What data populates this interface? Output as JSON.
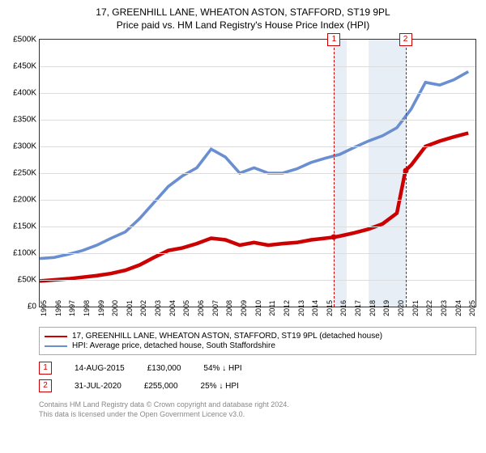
{
  "title_line1": "17, GREENHILL LANE, WHEATON ASTON, STAFFORD, ST19 9PL",
  "title_line2": "Price paid vs. HM Land Registry's House Price Index (HPI)",
  "chart": {
    "type": "line",
    "background_color": "#ffffff",
    "grid_color": "#dddddd",
    "border_color": "#333333",
    "shade_color": "#e8eef6",
    "marker_color": "#cc0000",
    "y": {
      "min": 0,
      "max": 500000,
      "ticks": [
        0,
        50000,
        100000,
        150000,
        200000,
        250000,
        300000,
        350000,
        400000,
        450000,
        500000
      ],
      "labels": [
        "£0",
        "£50K",
        "£100K",
        "£150K",
        "£200K",
        "£250K",
        "£300K",
        "£350K",
        "£400K",
        "£450K",
        "£500K"
      ],
      "label_fontsize": 10
    },
    "x": {
      "min": 1995,
      "max": 2025.5,
      "ticks": [
        1995,
        1996,
        1997,
        1998,
        1999,
        2000,
        2001,
        2002,
        2003,
        2004,
        2005,
        2006,
        2007,
        2008,
        2009,
        2010,
        2011,
        2012,
        2013,
        2014,
        2015,
        2016,
        2017,
        2018,
        2019,
        2020,
        2021,
        2022,
        2023,
        2024,
        2025
      ],
      "label_fontsize": 9
    },
    "series": [
      {
        "name": "price_paid",
        "color": "#cc0000",
        "line_width": 1.5,
        "data": [
          [
            1995,
            48000
          ],
          [
            1996,
            50000
          ],
          [
            1997,
            52000
          ],
          [
            1998,
            55000
          ],
          [
            1999,
            58000
          ],
          [
            2000,
            62000
          ],
          [
            2001,
            68000
          ],
          [
            2002,
            78000
          ],
          [
            2003,
            92000
          ],
          [
            2004,
            105000
          ],
          [
            2005,
            110000
          ],
          [
            2006,
            118000
          ],
          [
            2007,
            128000
          ],
          [
            2008,
            125000
          ],
          [
            2009,
            115000
          ],
          [
            2010,
            120000
          ],
          [
            2011,
            115000
          ],
          [
            2012,
            118000
          ],
          [
            2013,
            120000
          ],
          [
            2014,
            125000
          ],
          [
            2015,
            128000
          ],
          [
            2015.6,
            130000
          ],
          [
            2016,
            132000
          ],
          [
            2017,
            138000
          ],
          [
            2018,
            145000
          ],
          [
            2019,
            155000
          ],
          [
            2020,
            175000
          ],
          [
            2020.6,
            255000
          ],
          [
            2021,
            265000
          ],
          [
            2022,
            300000
          ],
          [
            2023,
            310000
          ],
          [
            2024,
            318000
          ],
          [
            2025,
            325000
          ]
        ]
      },
      {
        "name": "hpi",
        "color": "#6a8fd0",
        "line_width": 1.2,
        "data": [
          [
            1995,
            90000
          ],
          [
            1996,
            92000
          ],
          [
            1997,
            98000
          ],
          [
            1998,
            105000
          ],
          [
            1999,
            115000
          ],
          [
            2000,
            128000
          ],
          [
            2001,
            140000
          ],
          [
            2002,
            165000
          ],
          [
            2003,
            195000
          ],
          [
            2004,
            225000
          ],
          [
            2005,
            245000
          ],
          [
            2006,
            260000
          ],
          [
            2007,
            295000
          ],
          [
            2008,
            280000
          ],
          [
            2009,
            250000
          ],
          [
            2010,
            260000
          ],
          [
            2011,
            250000
          ],
          [
            2012,
            250000
          ],
          [
            2013,
            258000
          ],
          [
            2014,
            270000
          ],
          [
            2015,
            278000
          ],
          [
            2016,
            285000
          ],
          [
            2017,
            298000
          ],
          [
            2018,
            310000
          ],
          [
            2019,
            320000
          ],
          [
            2020,
            335000
          ],
          [
            2021,
            370000
          ],
          [
            2022,
            420000
          ],
          [
            2023,
            415000
          ],
          [
            2024,
            425000
          ],
          [
            2025,
            440000
          ]
        ]
      }
    ],
    "shaded_regions": [
      {
        "from": 2015.6,
        "to": 2016.5
      },
      {
        "from": 2018.0,
        "to": 2020.6
      }
    ],
    "markers": [
      {
        "num": "1",
        "x": 2015.6,
        "y": 130000
      },
      {
        "num": "2",
        "x": 2020.6,
        "y": 255000
      }
    ]
  },
  "legend": {
    "series1_label": "17, GREENHILL LANE, WHEATON ASTON, STAFFORD, ST19 9PL (detached house)",
    "series1_color": "#cc0000",
    "series2_label": "HPI: Average price, detached house, South Staffordshire",
    "series2_color": "#6a8fd0"
  },
  "sales": [
    {
      "num": "1",
      "date": "14-AUG-2015",
      "price": "£130,000",
      "pct": "54% ↓ HPI"
    },
    {
      "num": "2",
      "date": "31-JUL-2020",
      "price": "£255,000",
      "pct": "25% ↓ HPI"
    }
  ],
  "footer_line1": "Contains HM Land Registry data © Crown copyright and database right 2024.",
  "footer_line2": "This data is licensed under the Open Government Licence v3.0."
}
